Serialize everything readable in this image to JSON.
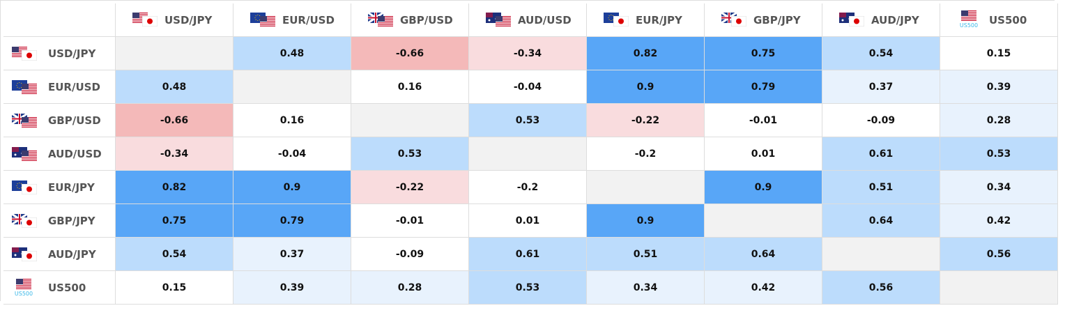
{
  "table": {
    "headers": [
      "USD/JPY",
      "EUR/USD",
      "GBP/USD",
      "AUD/USD",
      "EUR/JPY",
      "GBP/JPY",
      "AUD/JPY",
      "US500"
    ],
    "icon_caption": "US500",
    "rows": [
      [
        null,
        0.48,
        -0.66,
        -0.34,
        0.82,
        0.75,
        0.54,
        0.15
      ],
      [
        0.48,
        null,
        0.16,
        -0.04,
        0.9,
        0.79,
        0.37,
        0.39
      ],
      [
        -0.66,
        0.16,
        null,
        0.53,
        -0.22,
        -0.01,
        -0.09,
        0.28
      ],
      [
        -0.34,
        -0.04,
        0.53,
        null,
        -0.2,
        0.01,
        0.61,
        0.53
      ],
      [
        0.82,
        0.9,
        -0.22,
        -0.2,
        null,
        0.9,
        0.51,
        0.34
      ],
      [
        0.75,
        0.79,
        -0.01,
        0.01,
        0.9,
        null,
        0.64,
        0.42
      ],
      [
        0.54,
        0.37,
        -0.09,
        0.61,
        0.51,
        0.64,
        null,
        0.56
      ],
      [
        0.15,
        0.39,
        0.28,
        0.53,
        0.34,
        0.42,
        0.56,
        null
      ]
    ]
  }
}
